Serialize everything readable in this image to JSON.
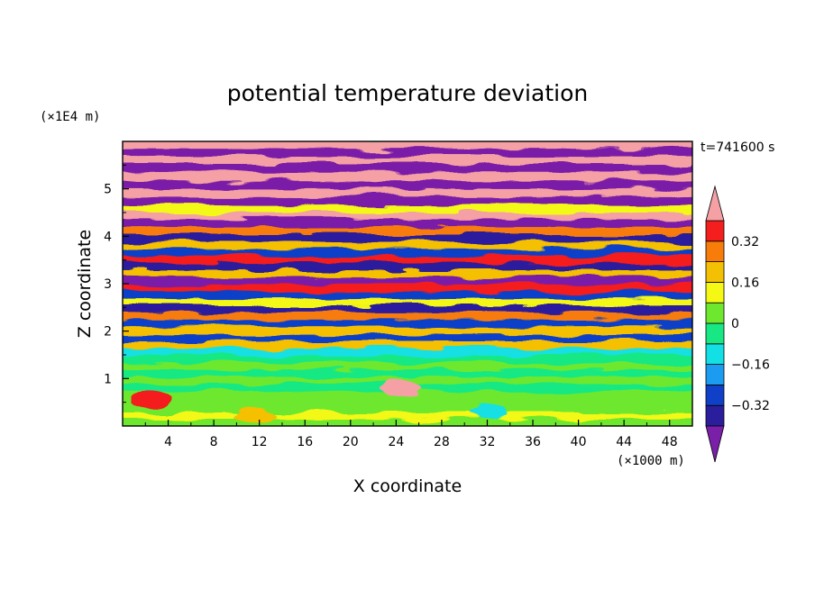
{
  "chart_data": {
    "type": "heatmap",
    "title": "potential temperature deviation",
    "xlabel": "X coordinate",
    "ylabel": "Z coordinate",
    "x_unit_label": "(×1000 m)",
    "y_unit_label": "(×1E4 m)",
    "time_label": "t=741600 s",
    "xlim": [
      0,
      50
    ],
    "ylim": [
      0,
      6
    ],
    "x_ticks": [
      4,
      8,
      12,
      16,
      20,
      24,
      28,
      32,
      36,
      40,
      44,
      48
    ],
    "x_tick_labels": [
      "4",
      "8",
      "12",
      "16",
      "20",
      "24",
      "28",
      "32",
      "36",
      "40",
      "44",
      "48"
    ],
    "y_ticks": [
      1,
      2,
      3,
      4,
      5
    ],
    "y_tick_labels": [
      "1",
      "2",
      "3",
      "4",
      "5"
    ],
    "colorbar": {
      "levels": [
        -0.4,
        -0.32,
        -0.24,
        -0.16,
        -0.08,
        0,
        0.08,
        0.16,
        0.24,
        0.32,
        0.4
      ],
      "labeled_values": [
        0.32,
        0.16,
        0,
        -0.16,
        -0.32
      ],
      "labels": [
        "0.32",
        "0.16",
        "0",
        "−0.16",
        "−0.32"
      ],
      "colors": [
        "#7a1fa8",
        "#2a1e9c",
        "#1040c8",
        "#1c9cf0",
        "#12e0e4",
        "#18e884",
        "#6ee82e",
        "#f4f814",
        "#f4c004",
        "#f87c0a",
        "#f41e1e",
        "#f4a0a4"
      ],
      "extend": "both"
    },
    "layers": [
      {
        "z": 5.85,
        "v": 0.45
      },
      {
        "z": 5.72,
        "v": -0.45
      },
      {
        "z": 5.55,
        "v": 0.45
      },
      {
        "z": 5.38,
        "v": -0.45
      },
      {
        "z": 5.2,
        "v": 0.45
      },
      {
        "z": 5.02,
        "v": -0.45
      },
      {
        "z": 4.85,
        "v": 0.45
      },
      {
        "z": 4.68,
        "v": -0.45
      },
      {
        "z": 4.5,
        "v": 0.1
      },
      {
        "z": 4.38,
        "v": 0.45
      },
      {
        "z": 4.22,
        "v": -0.45
      },
      {
        "z": 4.05,
        "v": 0.3
      },
      {
        "z": 3.9,
        "v": -0.35
      },
      {
        "z": 3.75,
        "v": 0.2
      },
      {
        "z": 3.6,
        "v": -0.28
      },
      {
        "z": 3.45,
        "v": 0.38
      },
      {
        "z": 3.3,
        "v": -0.38
      },
      {
        "z": 3.15,
        "v": 0.2
      },
      {
        "z": 3.0,
        "v": -0.42
      },
      {
        "z": 2.85,
        "v": 0.35
      },
      {
        "z": 2.7,
        "v": -0.3
      },
      {
        "z": 2.55,
        "v": 0.12
      },
      {
        "z": 2.4,
        "v": -0.38
      },
      {
        "z": 2.25,
        "v": 0.28
      },
      {
        "z": 2.1,
        "v": -0.25
      },
      {
        "z": 1.95,
        "v": 0.18
      },
      {
        "z": 1.8,
        "v": -0.3
      },
      {
        "z": 1.65,
        "v": 0.22
      },
      {
        "z": 1.5,
        "v": -0.1
      },
      {
        "z": 1.35,
        "v": -0.06
      },
      {
        "z": 1.2,
        "v": 0.02
      },
      {
        "z": 1.05,
        "v": -0.02
      },
      {
        "z": 0.9,
        "v": 0.05
      },
      {
        "z": 0.75,
        "v": -0.04
      },
      {
        "z": 0.6,
        "v": 0.02
      },
      {
        "z": 0.45,
        "v": 0.06
      },
      {
        "z": 0.3,
        "v": 0.03
      },
      {
        "z": 0.15,
        "v": 0.08
      },
      {
        "z": 0.0,
        "v": 0.05
      }
    ],
    "features": [
      {
        "x": 2.5,
        "z": 0.55,
        "v": 0.35
      },
      {
        "x": 11.5,
        "z": 0.2,
        "v": 0.18
      },
      {
        "x": 24.5,
        "z": 0.8,
        "v": 0.42
      },
      {
        "x": 32.0,
        "z": 0.3,
        "v": -0.14
      }
    ],
    "grid": false,
    "legend": "colorbar-right"
  }
}
